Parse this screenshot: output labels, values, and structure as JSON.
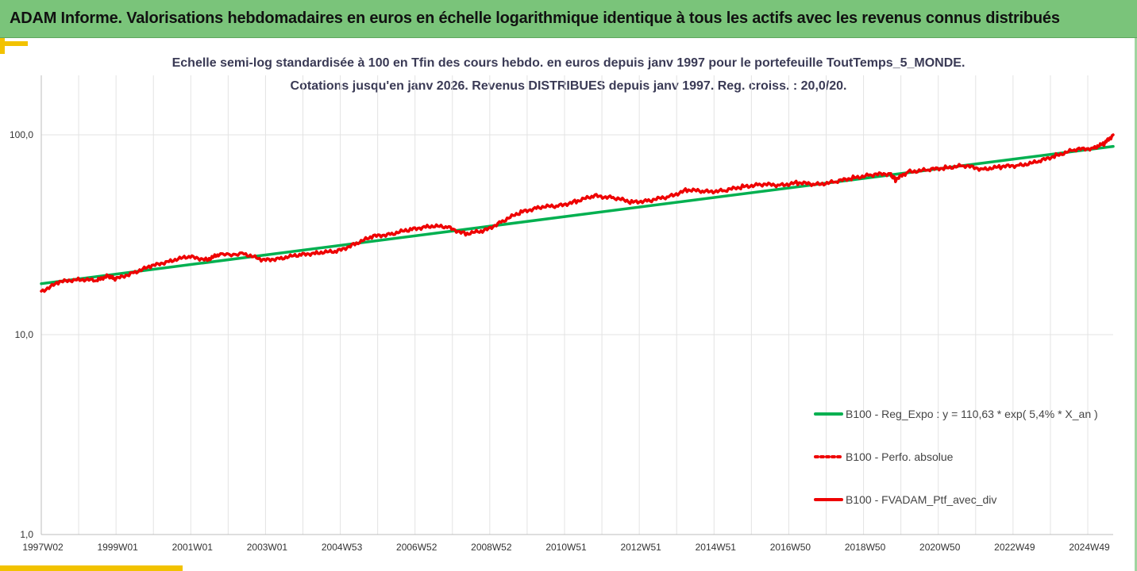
{
  "header": {
    "title": "ADAM Informe. Valorisations hebdomadaires en euros en échelle logarithmique identique à tous les actifs avec les revenus connus distribués"
  },
  "chart_data": {
    "type": "line",
    "title_line1": "Echelle semi-log standardisée à 100 en Tfin des cours hebdo. en euros depuis janv 1997 pour le portefeuille ToutTemps_5_MONDE.",
    "title_line2": "Cotations jusqu'en janv 2026. Revenus DISTRIBUES depuis janv 1997. Reg. croiss. : 20,0/20.",
    "y_scale": "log",
    "ylim": [
      1,
      200
    ],
    "y_ticks": [
      1,
      10,
      100
    ],
    "y_tick_labels": [
      "1,0",
      "10,0",
      "100,0"
    ],
    "x_tick_labels": [
      "1997W02",
      "1999W01",
      "2001W01",
      "2003W01",
      "2004W53",
      "2006W52",
      "2008W52",
      "2010W51",
      "2012W51",
      "2014W51",
      "2016W50",
      "2018W50",
      "2020W50",
      "2022W49",
      "2024W49"
    ],
    "x_range_years": [
      1997.0,
      2026.05
    ],
    "grid": true,
    "legend_position": "bottom-right",
    "series": [
      {
        "name": "B100 - Reg_Expo : y = 110,63 * exp( 5,4% *  X_an )",
        "color": "#00b050",
        "style": "solid",
        "x": [
          1997.0,
          2026.05
        ],
        "y": [
          18.0,
          87.5
        ]
      },
      {
        "name": "B100 - Perfo. absolue",
        "color": "#ee0000",
        "style": "dotted",
        "x": [],
        "y": []
      },
      {
        "name": "B100 - FVADAM_Ptf_avec_div",
        "color": "#ee0000",
        "style": "solid",
        "x": [
          1997.0,
          1997.5,
          1998.0,
          1998.5,
          1998.8,
          1999.0,
          1999.5,
          2000.0,
          2000.5,
          2001.0,
          2001.5,
          2001.8,
          2002.5,
          2003.0,
          2003.5,
          2004.0,
          2004.5,
          2005.0,
          2005.5,
          2006.0,
          2006.5,
          2007.0,
          2007.5,
          2008.0,
          2008.5,
          2009.0,
          2009.5,
          2010.0,
          2010.5,
          2011.0,
          2011.5,
          2012.0,
          2012.5,
          2013.0,
          2013.5,
          2014.0,
          2014.5,
          2015.0,
          2015.5,
          2016.0,
          2016.5,
          2017.0,
          2017.5,
          2018.0,
          2018.5,
          2019.0,
          2019.5,
          2020.0,
          2020.15,
          2020.5,
          2021.0,
          2021.5,
          2022.0,
          2022.5,
          2023.0,
          2023.5,
          2024.0,
          2024.5,
          2025.0,
          2025.5,
          2025.8,
          2026.05
        ],
        "y": [
          16.5,
          18.3,
          19.0,
          18.6,
          19.8,
          18.9,
          20.5,
          22.0,
          23.5,
          24.5,
          23.8,
          25.0,
          25.5,
          23.5,
          24.2,
          25.0,
          25.8,
          26.0,
          28.5,
          31.0,
          32.0,
          33.5,
          35.0,
          34.5,
          32.0,
          33.0,
          37.0,
          41.0,
          43.5,
          44.0,
          46.5,
          49.5,
          48.5,
          46.0,
          47.0,
          49.0,
          53.0,
          52.0,
          52.5,
          55.0,
          56.5,
          56.0,
          57.5,
          56.5,
          58.0,
          61.0,
          63.0,
          64.0,
          59.5,
          65.5,
          66.5,
          68.5,
          70.0,
          67.5,
          69.0,
          70.5,
          73.0,
          79.0,
          84.0,
          86.0,
          90.0,
          100.0
        ]
      }
    ]
  }
}
